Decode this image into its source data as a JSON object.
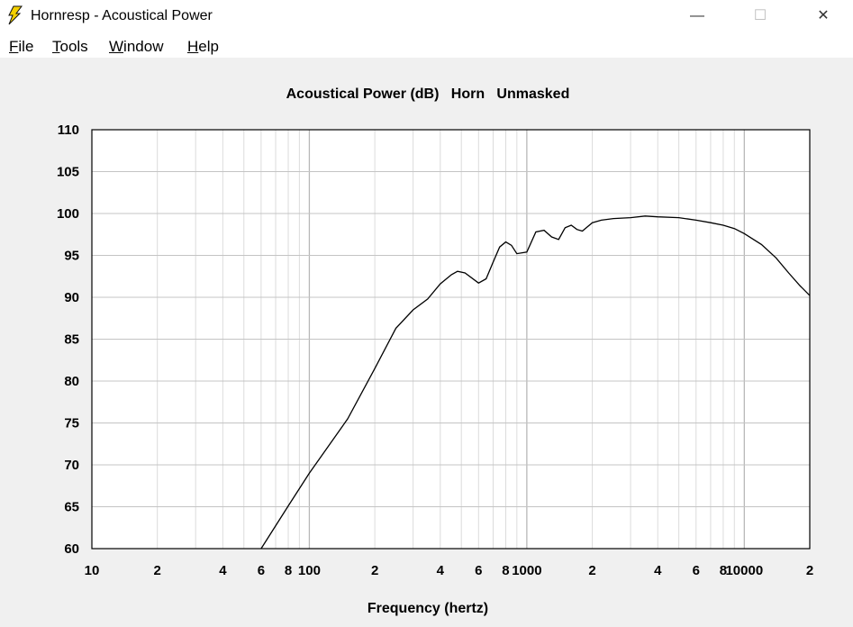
{
  "window": {
    "title": "Hornresp - Acoustical Power",
    "minimize_glyph": "—",
    "maximize_glyph": "☐",
    "close_glyph": "✕",
    "icon": "lightning-bolt-icon",
    "icon_color": "#f4d000"
  },
  "menu": {
    "items": [
      {
        "accel": "F",
        "rest": "ile"
      },
      {
        "accel": "T",
        "rest": "ools"
      },
      {
        "accel": "W",
        "rest": "indow"
      },
      {
        "accel": "H",
        "rest": "elp"
      }
    ]
  },
  "chart_data": {
    "type": "line",
    "title": "Acoustical Power (dB)   Horn   Unmasked",
    "xlabel": "Frequency (hertz)",
    "ylabel": "",
    "x_scale": "log",
    "xlim": [
      10,
      20000
    ],
    "ylim": [
      60,
      110
    ],
    "y_ticks": [
      110,
      105,
      100,
      95,
      90,
      85,
      80,
      75,
      70,
      65,
      60
    ],
    "x_tick_labels": [
      {
        "value": 10,
        "label": "10"
      },
      {
        "value": 20,
        "label": "2"
      },
      {
        "value": 40,
        "label": "4"
      },
      {
        "value": 60,
        "label": "6"
      },
      {
        "value": 80,
        "label": "8"
      },
      {
        "value": 100,
        "label": "100"
      },
      {
        "value": 200,
        "label": "2"
      },
      {
        "value": 400,
        "label": "4"
      },
      {
        "value": 600,
        "label": "6"
      },
      {
        "value": 800,
        "label": "8"
      },
      {
        "value": 1000,
        "label": "1000"
      },
      {
        "value": 2000,
        "label": "2"
      },
      {
        "value": 4000,
        "label": "4"
      },
      {
        "value": 6000,
        "label": "6"
      },
      {
        "value": 8000,
        "label": "8"
      },
      {
        "value": 10000,
        "label": "10000"
      },
      {
        "value": 20000,
        "label": "2"
      }
    ],
    "grid": true,
    "line_color": "#000000",
    "grid_color": "#c8c8c8",
    "series": [
      {
        "x": [
          60,
          80,
          100,
          150,
          200,
          250,
          300,
          350,
          400,
          450,
          480,
          520,
          600,
          650,
          700,
          750,
          800,
          850,
          900,
          1000,
          1100,
          1200,
          1300,
          1400,
          1500,
          1600,
          1700,
          1800,
          2000,
          2200,
          2500,
          3000,
          3500,
          4000,
          5000,
          6000,
          7000,
          8000,
          9000,
          10000,
          12000,
          14000,
          16000,
          18000,
          20000
        ],
        "y": [
          60,
          65.1,
          69,
          75.5,
          81.5,
          86.3,
          88.5,
          89.8,
          91.6,
          92.7,
          93.1,
          92.9,
          91.7,
          92.2,
          94.2,
          96,
          96.6,
          96.2,
          95.2,
          95.4,
          97.8,
          98,
          97.2,
          96.9,
          98.3,
          98.6,
          98.1,
          97.9,
          98.9,
          99.2,
          99.4,
          99.5,
          99.7,
          99.6,
          99.5,
          99.2,
          98.9,
          98.6,
          98.2,
          97.6,
          96.3,
          94.7,
          92.9,
          91.4,
          90.2
        ]
      }
    ]
  }
}
